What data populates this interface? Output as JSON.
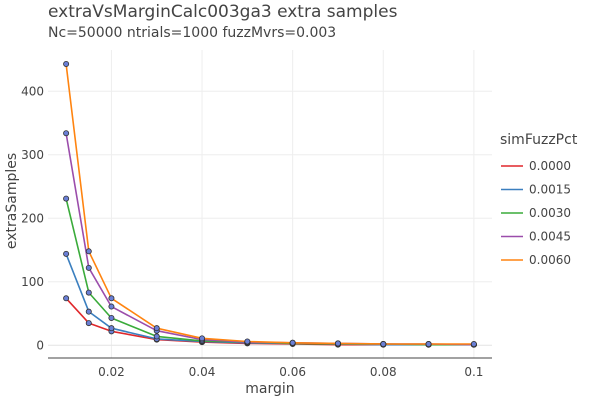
{
  "chart_data": {
    "type": "line",
    "title": "extraVsMarginCalc003ga3 extra samples",
    "subtitle": "Nc=50000 ntrials=1000 fuzzMvrs=0.003",
    "xlabel": "margin",
    "ylabel": "extraSamples",
    "xlim": [
      0.006,
      0.104
    ],
    "ylim": [
      -20,
      465
    ],
    "xticks": [
      0.02,
      0.04,
      0.06,
      0.08,
      0.1
    ],
    "xtick_labels": [
      "0.02",
      "0.04",
      "0.06",
      "0.08",
      "0.1"
    ],
    "yticks": [
      0,
      100,
      200,
      300,
      400
    ],
    "ytick_labels": [
      "0",
      "100",
      "200",
      "300",
      "400"
    ],
    "grid": true,
    "legend_title": "simFuzzPct",
    "legend_position": "right",
    "marker_color": "#6a7fd6",
    "x": [
      0.01,
      0.015,
      0.02,
      0.03,
      0.04,
      0.05,
      0.06,
      0.07,
      0.08,
      0.09,
      0.1
    ],
    "series": [
      {
        "name": "0.0000",
        "color": "#e0272b",
        "values": [
          74,
          35,
          22,
          9,
          5,
          3,
          2,
          1,
          1,
          1,
          1
        ]
      },
      {
        "name": "0.0015",
        "color": "#3b7fbf",
        "values": [
          144,
          53,
          27,
          10,
          6,
          4,
          3,
          2,
          1,
          1,
          1
        ]
      },
      {
        "name": "0.0030",
        "color": "#3aab3a",
        "values": [
          231,
          83,
          43,
          14,
          7,
          5,
          3,
          2,
          2,
          1,
          1
        ]
      },
      {
        "name": "0.0045",
        "color": "#9b4dab",
        "values": [
          334,
          122,
          61,
          23,
          9,
          5,
          4,
          3,
          2,
          2,
          1
        ]
      },
      {
        "name": "0.0060",
        "color": "#ff8410",
        "values": [
          443,
          148,
          74,
          27,
          11,
          6,
          4,
          3,
          2,
          2,
          2
        ]
      }
    ]
  }
}
